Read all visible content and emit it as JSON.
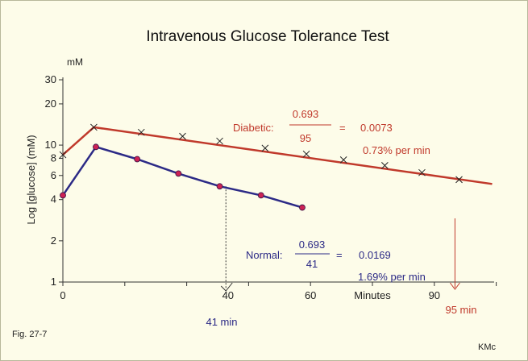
{
  "figure": {
    "fig_label": "Fig. 27-7",
    "credit": "KMc"
  },
  "chart_data": {
    "type": "line",
    "title": "Intravenous Glucose Tolerance Test",
    "xlabel": "Minutes",
    "ylabel": "Log [glucose] (mM)",
    "yunit": "mM",
    "yscale": "log",
    "ylim": [
      1,
      30
    ],
    "xlim": [
      0,
      105
    ],
    "xticks": [
      0,
      40,
      60,
      90
    ],
    "yticks": [
      1,
      2,
      4,
      6,
      8,
      10,
      20,
      30
    ],
    "series": [
      {
        "name": "Diabetic",
        "color": "#c0392b",
        "marker": "x",
        "x": [
          0,
          7.5,
          19,
          29,
          38,
          49,
          59,
          68,
          78,
          87,
          96
        ],
        "y": [
          8.5,
          13.5,
          12.4,
          11.6,
          10.7,
          9.5,
          8.6,
          7.8,
          7.1,
          6.3,
          5.6
        ],
        "fit_line": {
          "x": [
            0,
            7.5,
            104
          ],
          "y": [
            8.5,
            13.5,
            5.2
          ]
        }
      },
      {
        "name": "Normal",
        "color": "#2c2a86",
        "marker": "dot",
        "x": [
          0,
          8,
          18,
          28,
          38,
          48,
          58
        ],
        "y": [
          4.3,
          9.7,
          7.9,
          6.2,
          5.0,
          4.3,
          3.5
        ]
      }
    ],
    "annotations": {
      "diabetic": {
        "label": "Diabetic:",
        "numerator": "0.693",
        "denominator": "95",
        "equals": "=",
        "result": "0.0073",
        "rate": "0.73% per min",
        "half_time": "95 min"
      },
      "normal": {
        "label": "Normal:",
        "numerator": "0.693",
        "denominator": "41",
        "equals": "=",
        "result": "0.0169",
        "rate": "1.69% per min",
        "half_time": "41 min"
      }
    }
  }
}
